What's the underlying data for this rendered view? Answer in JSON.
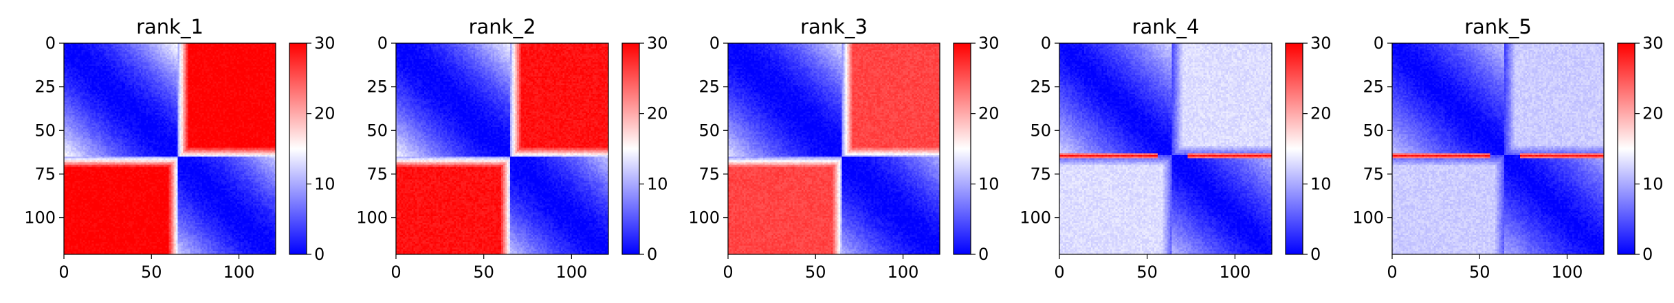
{
  "chart_data": [
    {
      "type": "heatmap",
      "title": "rank_1",
      "xticks": [
        0,
        50,
        100
      ],
      "yticks": [
        0,
        25,
        50,
        75,
        100
      ],
      "xlim": [
        0,
        121
      ],
      "ylim": [
        121,
        0
      ],
      "boundary_index": 65,
      "block_profile": {
        "near_diagonal": 0,
        "far_off_diagonal": 30
      },
      "colorbar": {
        "min": 0,
        "max": 30,
        "ticks": [
          0,
          10,
          20,
          30
        ],
        "colormap": "bwr"
      }
    },
    {
      "type": "heatmap",
      "title": "rank_2",
      "xticks": [
        0,
        50,
        100
      ],
      "yticks": [
        0,
        25,
        50,
        75,
        100
      ],
      "xlim": [
        0,
        121
      ],
      "ylim": [
        121,
        0
      ],
      "boundary_index": 65,
      "block_profile": {
        "near_diagonal": 0,
        "far_off_diagonal": 29
      },
      "colorbar": {
        "min": 0,
        "max": 30,
        "ticks": [
          0,
          10,
          20,
          30
        ],
        "colormap": "bwr"
      }
    },
    {
      "type": "heatmap",
      "title": "rank_3",
      "xticks": [
        0,
        50,
        100
      ],
      "yticks": [
        0,
        25,
        50,
        75,
        100
      ],
      "xlim": [
        0,
        121
      ],
      "ylim": [
        121,
        0
      ],
      "boundary_index": 65,
      "block_profile": {
        "near_diagonal": 0,
        "far_off_diagonal": 26
      },
      "colorbar": {
        "min": 0,
        "max": 30,
        "ticks": [
          0,
          10,
          20,
          30
        ],
        "colormap": "bwr"
      }
    },
    {
      "type": "heatmap",
      "title": "rank_4",
      "xticks": [
        0,
        50,
        100
      ],
      "yticks": [
        0,
        25,
        50,
        75,
        100
      ],
      "xlim": [
        0,
        121
      ],
      "ylim": [
        121,
        0
      ],
      "boundary_index": 64,
      "block_profile": {
        "near_diagonal": 0,
        "far_off_diagonal": 13,
        "boundary_row_value": 29
      },
      "colorbar": {
        "min": 0,
        "max": 30,
        "ticks": [
          0,
          10,
          20,
          30
        ],
        "colormap": "bwr"
      }
    },
    {
      "type": "heatmap",
      "title": "rank_5",
      "xticks": [
        0,
        50,
        100
      ],
      "yticks": [
        0,
        25,
        50,
        75,
        100
      ],
      "xlim": [
        0,
        121
      ],
      "ylim": [
        121,
        0
      ],
      "boundary_index": 64,
      "block_profile": {
        "near_diagonal": 0,
        "far_off_diagonal": 12,
        "boundary_row_value": 29
      },
      "colorbar": {
        "min": 0,
        "max": 30,
        "ticks": [
          0,
          10,
          20,
          30
        ],
        "colormap": "bwr"
      }
    }
  ]
}
